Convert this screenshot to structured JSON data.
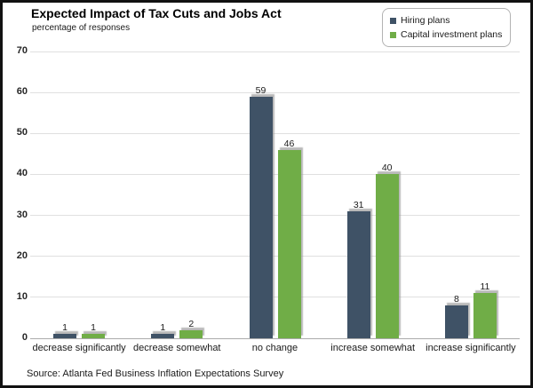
{
  "chart_data": {
    "type": "bar",
    "title": "Expected Impact of Tax Cuts and Jobs Act",
    "subtitle": "percentage of responses",
    "categories": [
      "decrease significantly",
      "decrease somewhat",
      "no change",
      "increase somewhat",
      "increase significantly"
    ],
    "series": [
      {
        "name": "Hiring plans",
        "color": "#3F5266",
        "values": [
          1,
          1,
          59,
          31,
          8
        ]
      },
      {
        "name": "Capital investment plans",
        "color": "#70AD47",
        "values": [
          1,
          2,
          46,
          40,
          11
        ]
      }
    ],
    "ylim": [
      0,
      70
    ],
    "yticks": [
      0,
      10,
      20,
      30,
      40,
      50,
      60,
      70
    ],
    "grid": true,
    "legend_position": "top-right",
    "source": "Source: Atlanta Fed Business Inflation Expectations Survey"
  },
  "colors": {
    "gridline": "#e0e0e0",
    "axis_line": "#ababab",
    "text": "#1a1a1a"
  }
}
